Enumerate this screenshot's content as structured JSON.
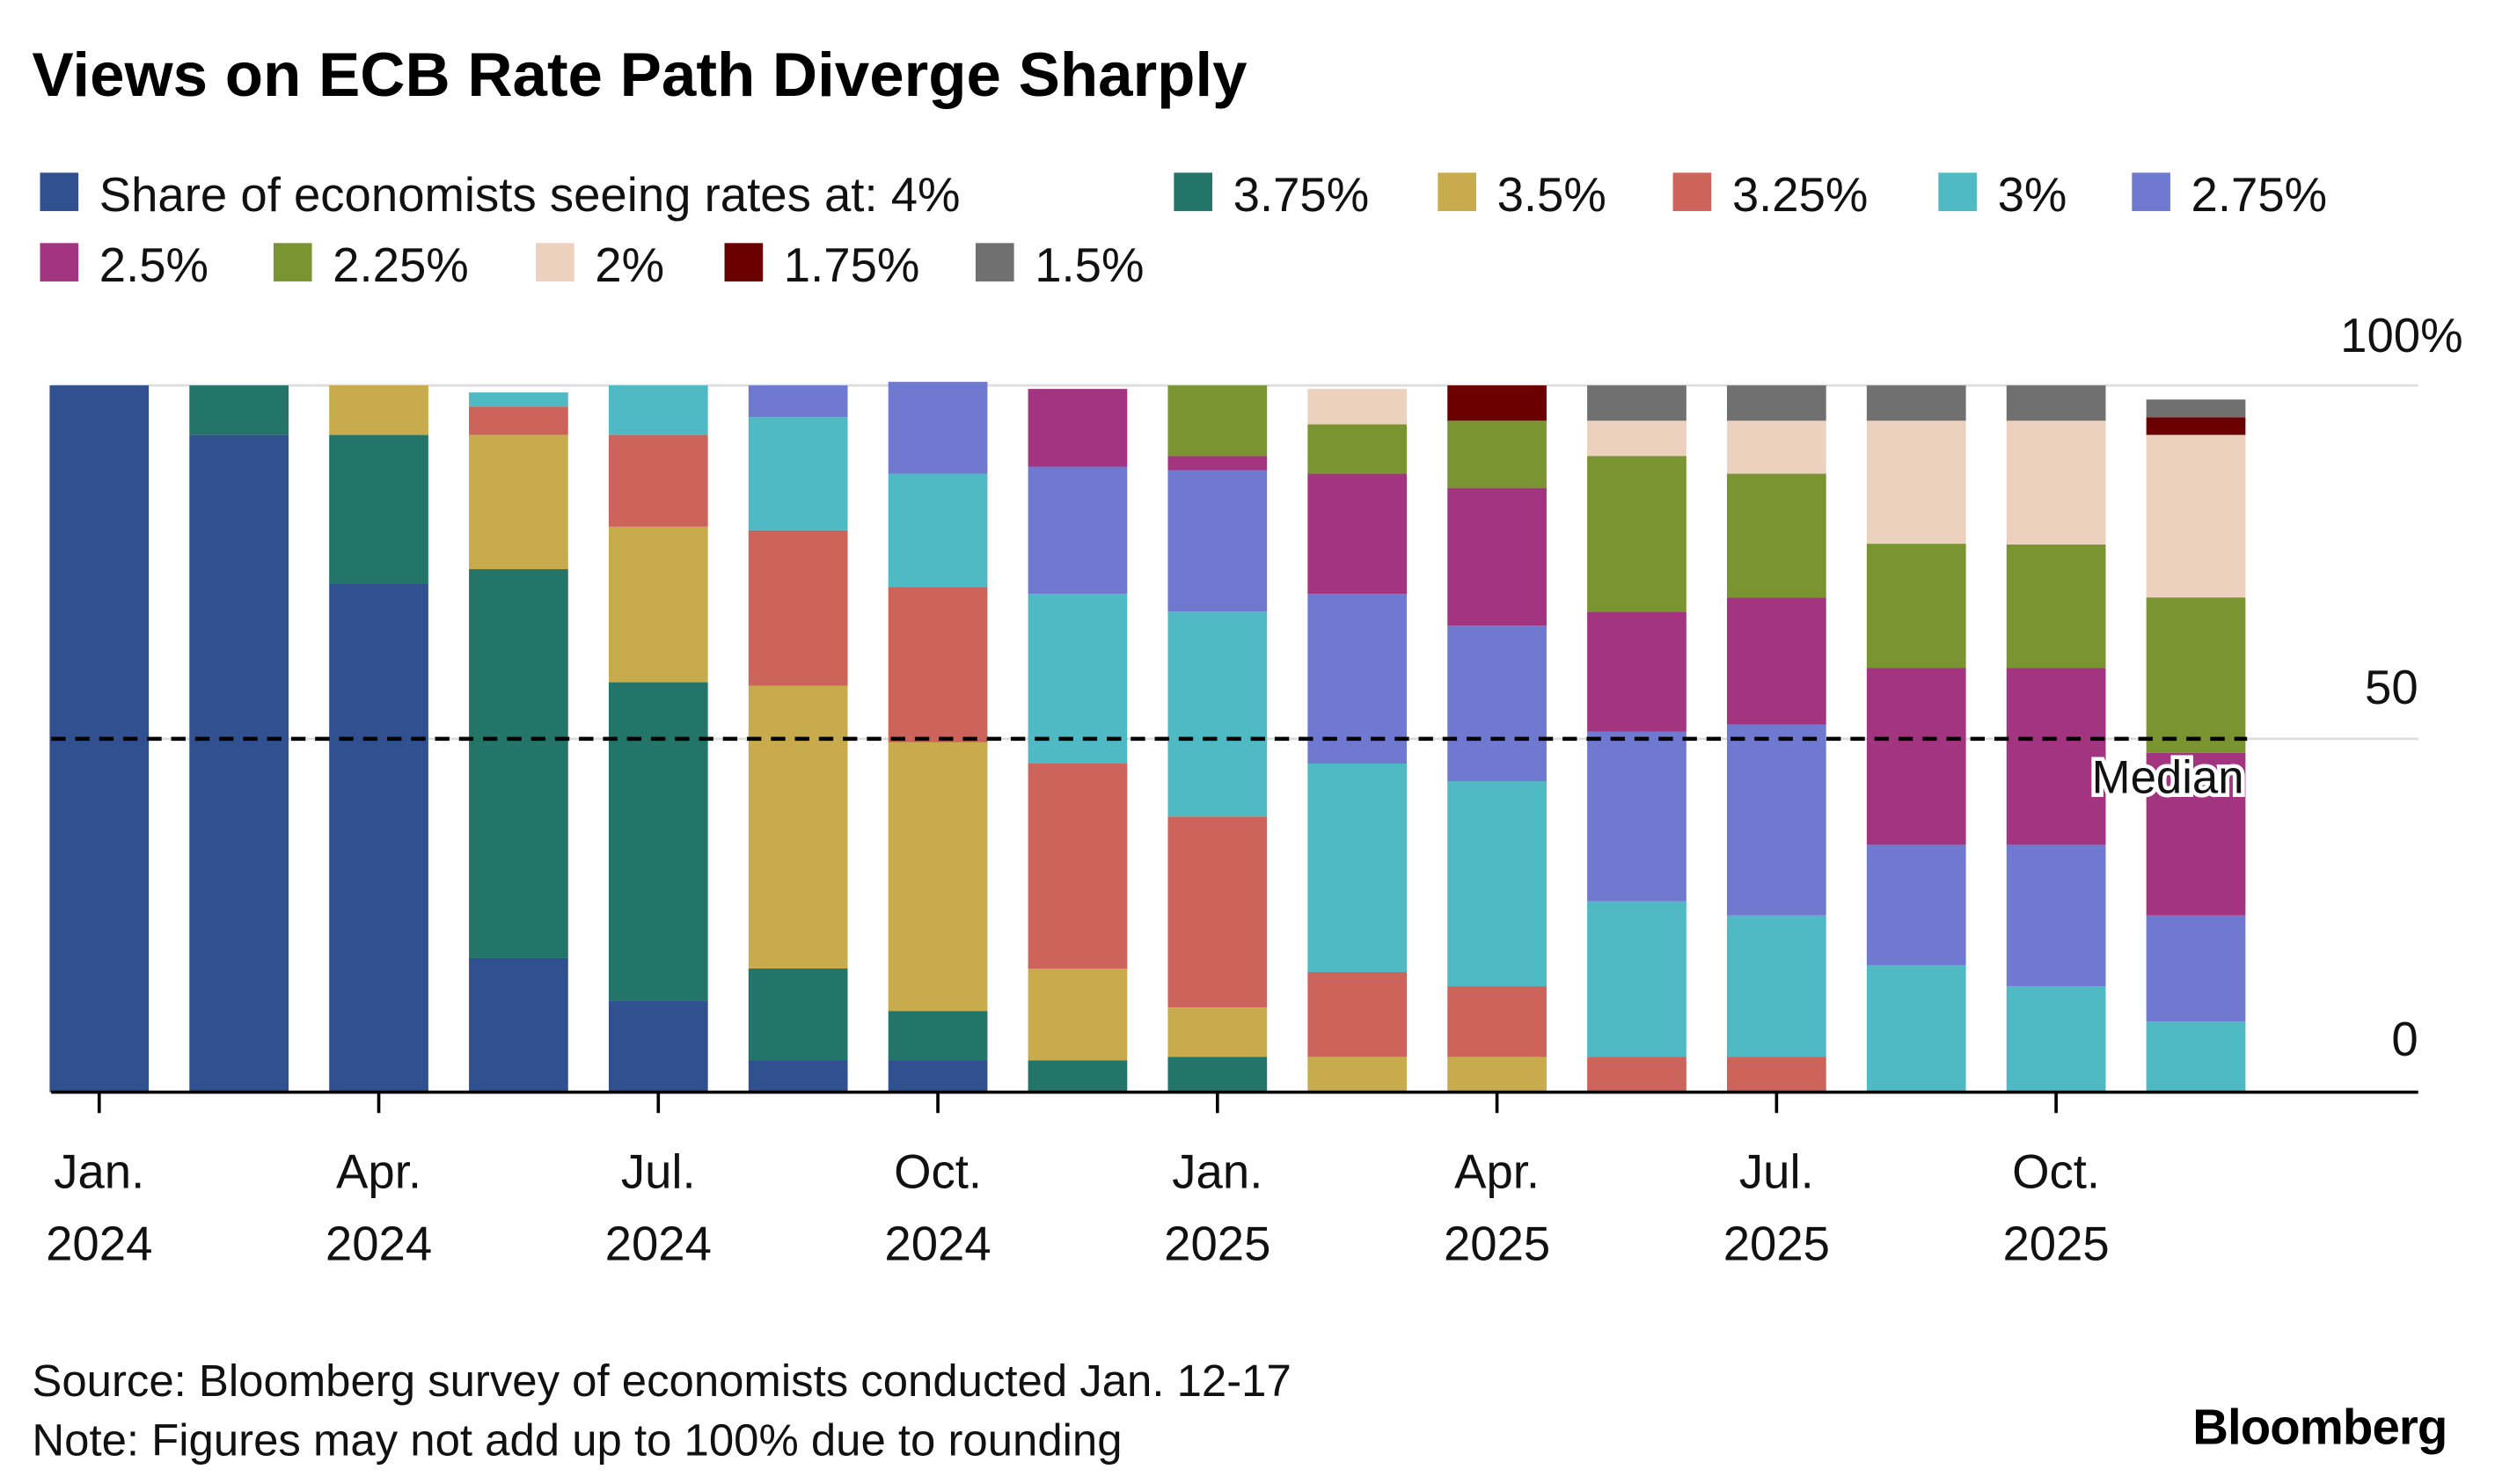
{
  "chart_data": {
    "type": "bar",
    "stacked": true,
    "title": "Views on ECB Rate Path Diverge Sharply",
    "legend_prefix": "Share of economists seeing rates at: ",
    "series_names": [
      "4%",
      "3.75%",
      "3.5%",
      "3.25%",
      "3%",
      "2.75%",
      "2.5%",
      "2.25%",
      "2%",
      "1.75%",
      "1.5%"
    ],
    "colors": [
      "#30508f",
      "#23756a",
      "#c7ab4d",
      "#cc645c",
      "#4fb9c4",
      "#6f79cf",
      "#a23480",
      "#7a9432",
      "#edd1bf",
      "#6a0000",
      "#707070"
    ],
    "x_tick_labels": [
      {
        "bar": 0,
        "line1": "Jan.",
        "line2": "2024"
      },
      {
        "bar": 2,
        "line1": "Apr.",
        "line2": "2024"
      },
      {
        "bar": 4,
        "line1": "Jul.",
        "line2": "2024"
      },
      {
        "bar": 6,
        "line1": "Oct.",
        "line2": "2024"
      },
      {
        "bar": 8,
        "line1": "Jan.",
        "line2": "2025"
      },
      {
        "bar": 10,
        "line1": "Apr.",
        "line2": "2025"
      },
      {
        "bar": 12,
        "line1": "Jul.",
        "line2": "2025"
      },
      {
        "bar": 14,
        "line1": "Oct.",
        "line2": "2025"
      }
    ],
    "y_tick_labels": [
      "0",
      "50",
      "100%"
    ],
    "ylim": [
      0,
      100
    ],
    "median_line": 50,
    "median_label": "Median",
    "bars": [
      [
        100,
        0,
        0,
        0,
        0,
        0,
        0,
        0,
        0,
        0,
        0
      ],
      [
        93,
        7,
        0,
        0,
        0,
        0,
        0,
        0,
        0,
        0,
        0
      ],
      [
        72,
        21,
        7,
        0,
        0,
        0,
        0,
        0,
        0,
        0,
        0
      ],
      [
        19,
        55,
        19,
        4,
        2,
        0,
        0,
        0,
        0,
        0,
        0
      ],
      [
        13,
        45,
        22,
        13,
        7,
        0,
        0,
        0,
        0,
        0,
        0
      ],
      [
        4.5,
        13,
        40,
        22,
        16,
        4.5,
        0,
        0,
        0,
        0,
        0
      ],
      [
        4.5,
        7,
        38,
        22,
        16,
        13,
        0,
        0,
        0,
        0,
        0
      ],
      [
        0,
        4.5,
        13,
        29,
        24,
        18,
        11,
        0,
        0,
        0,
        0
      ],
      [
        0,
        5,
        7,
        27,
        29,
        20,
        2,
        10,
        0,
        0,
        0
      ],
      [
        0,
        0,
        5,
        12,
        29.5,
        24,
        17,
        7,
        5,
        0,
        0
      ],
      [
        0,
        0,
        5,
        10,
        29,
        22,
        19.5,
        9.5,
        0,
        5,
        0
      ],
      [
        0,
        0,
        0,
        5,
        22,
        24,
        17,
        22,
        5,
        0,
        5
      ],
      [
        0,
        0,
        0,
        5,
        20,
        27,
        18,
        17.5,
        7.5,
        0,
        5
      ],
      [
        0,
        0,
        0,
        0,
        18,
        17,
        25,
        17.6,
        17.4,
        0,
        5
      ],
      [
        0,
        0,
        0,
        0,
        15,
        20,
        25,
        17.5,
        17.5,
        0,
        5
      ],
      [
        0,
        0,
        0,
        0,
        10,
        15,
        23,
        22,
        23,
        2.5,
        2.5
      ]
    ]
  },
  "footer": {
    "source": "Source: Bloomberg survey of economists conducted Jan. 12-17",
    "note": "Note: Figures may not add up to 100% due to rounding",
    "logo": "Bloomberg"
  }
}
